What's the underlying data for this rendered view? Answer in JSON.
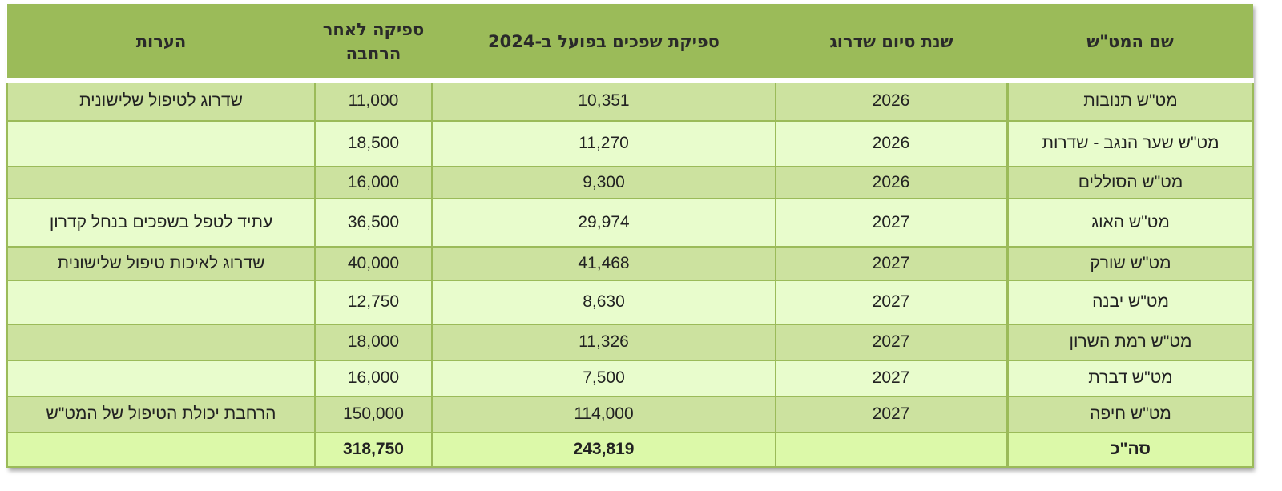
{
  "table": {
    "headers": {
      "name": "שם המט\"ש",
      "year": "שנת סיום שדרוג",
      "actual": "ספיקת שפכים בפועל ב-2024",
      "after": "ספיקה לאחר הרחבה",
      "notes": "הערות"
    },
    "rows": [
      {
        "name": "מט\"ש תנובות",
        "year": "2026",
        "actual": "10,351",
        "after": "11,000",
        "notes": "שדרוג לטיפול שלישונית"
      },
      {
        "name": "מט\"ש שער הנגב - שדרות",
        "year": "2026",
        "actual": "11,270",
        "after": "18,500",
        "notes": ""
      },
      {
        "name": "מט\"ש הסוללים",
        "year": "2026",
        "actual": "9,300",
        "after": "16,000",
        "notes": ""
      },
      {
        "name": "מט\"ש האוג",
        "year": "2027",
        "actual": "29,974",
        "after": "36,500",
        "notes": "עתיד לטפל בשפכים בנחל קדרון"
      },
      {
        "name": "מט\"ש שורק",
        "year": "2027",
        "actual": "41,468",
        "after": "40,000",
        "notes": "שדרוג לאיכות טיפול שלישונית"
      },
      {
        "name": "מט\"ש יבנה",
        "year": "2027",
        "actual": "8,630",
        "after": "12,750",
        "notes": ""
      },
      {
        "name": "מט\"ש רמת השרון",
        "year": "2027",
        "actual": "11,326",
        "after": "18,000",
        "notes": ""
      },
      {
        "name": "מט\"ש דברת",
        "year": "2027",
        "actual": "7,500",
        "after": "16,000",
        "notes": ""
      },
      {
        "name": "מט\"ש חיפה",
        "year": "2027",
        "actual": "114,000",
        "after": "150,000",
        "notes": "הרחבת יכולת הטיפול של המט\"ש"
      }
    ],
    "total": {
      "name": "סה\"כ",
      "year": "",
      "actual": "243,819",
      "after": "318,750",
      "notes": ""
    }
  },
  "colors": {
    "header": "#9bbb59",
    "row_dark": "#cce29f",
    "row_light": "#e8fccc",
    "total": "#dcf9a9"
  }
}
